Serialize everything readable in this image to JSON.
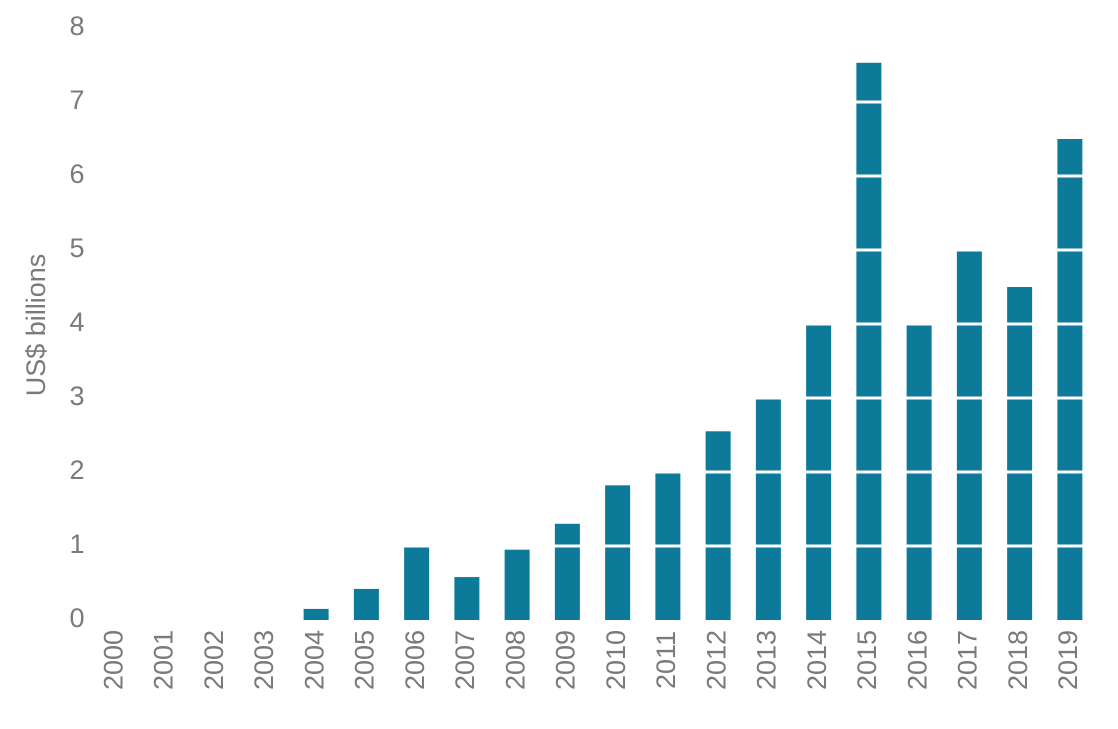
{
  "chart_data": {
    "type": "bar",
    "y_label": "US$ billions",
    "categories": [
      "2000",
      "2001",
      "2002",
      "2003",
      "2004",
      "2005",
      "2006",
      "2007",
      "2008",
      "2009",
      "2010",
      "2011",
      "2012",
      "2013",
      "2014",
      "2015",
      "2016",
      "2017",
      "2018",
      "2019"
    ],
    "values": [
      0,
      0,
      0,
      0,
      0.15,
      0.42,
      1.0,
      0.58,
      0.95,
      1.3,
      1.82,
      2.0,
      2.55,
      3.0,
      4.0,
      7.53,
      4.0,
      5.0,
      4.5,
      6.5
    ],
    "color": "#0e7a9a",
    "ylim": [
      0,
      8
    ],
    "yticks": [
      0,
      1,
      2,
      3,
      4,
      5,
      6,
      7,
      8
    ],
    "grid": true,
    "grid_color": "#ffffff"
  }
}
